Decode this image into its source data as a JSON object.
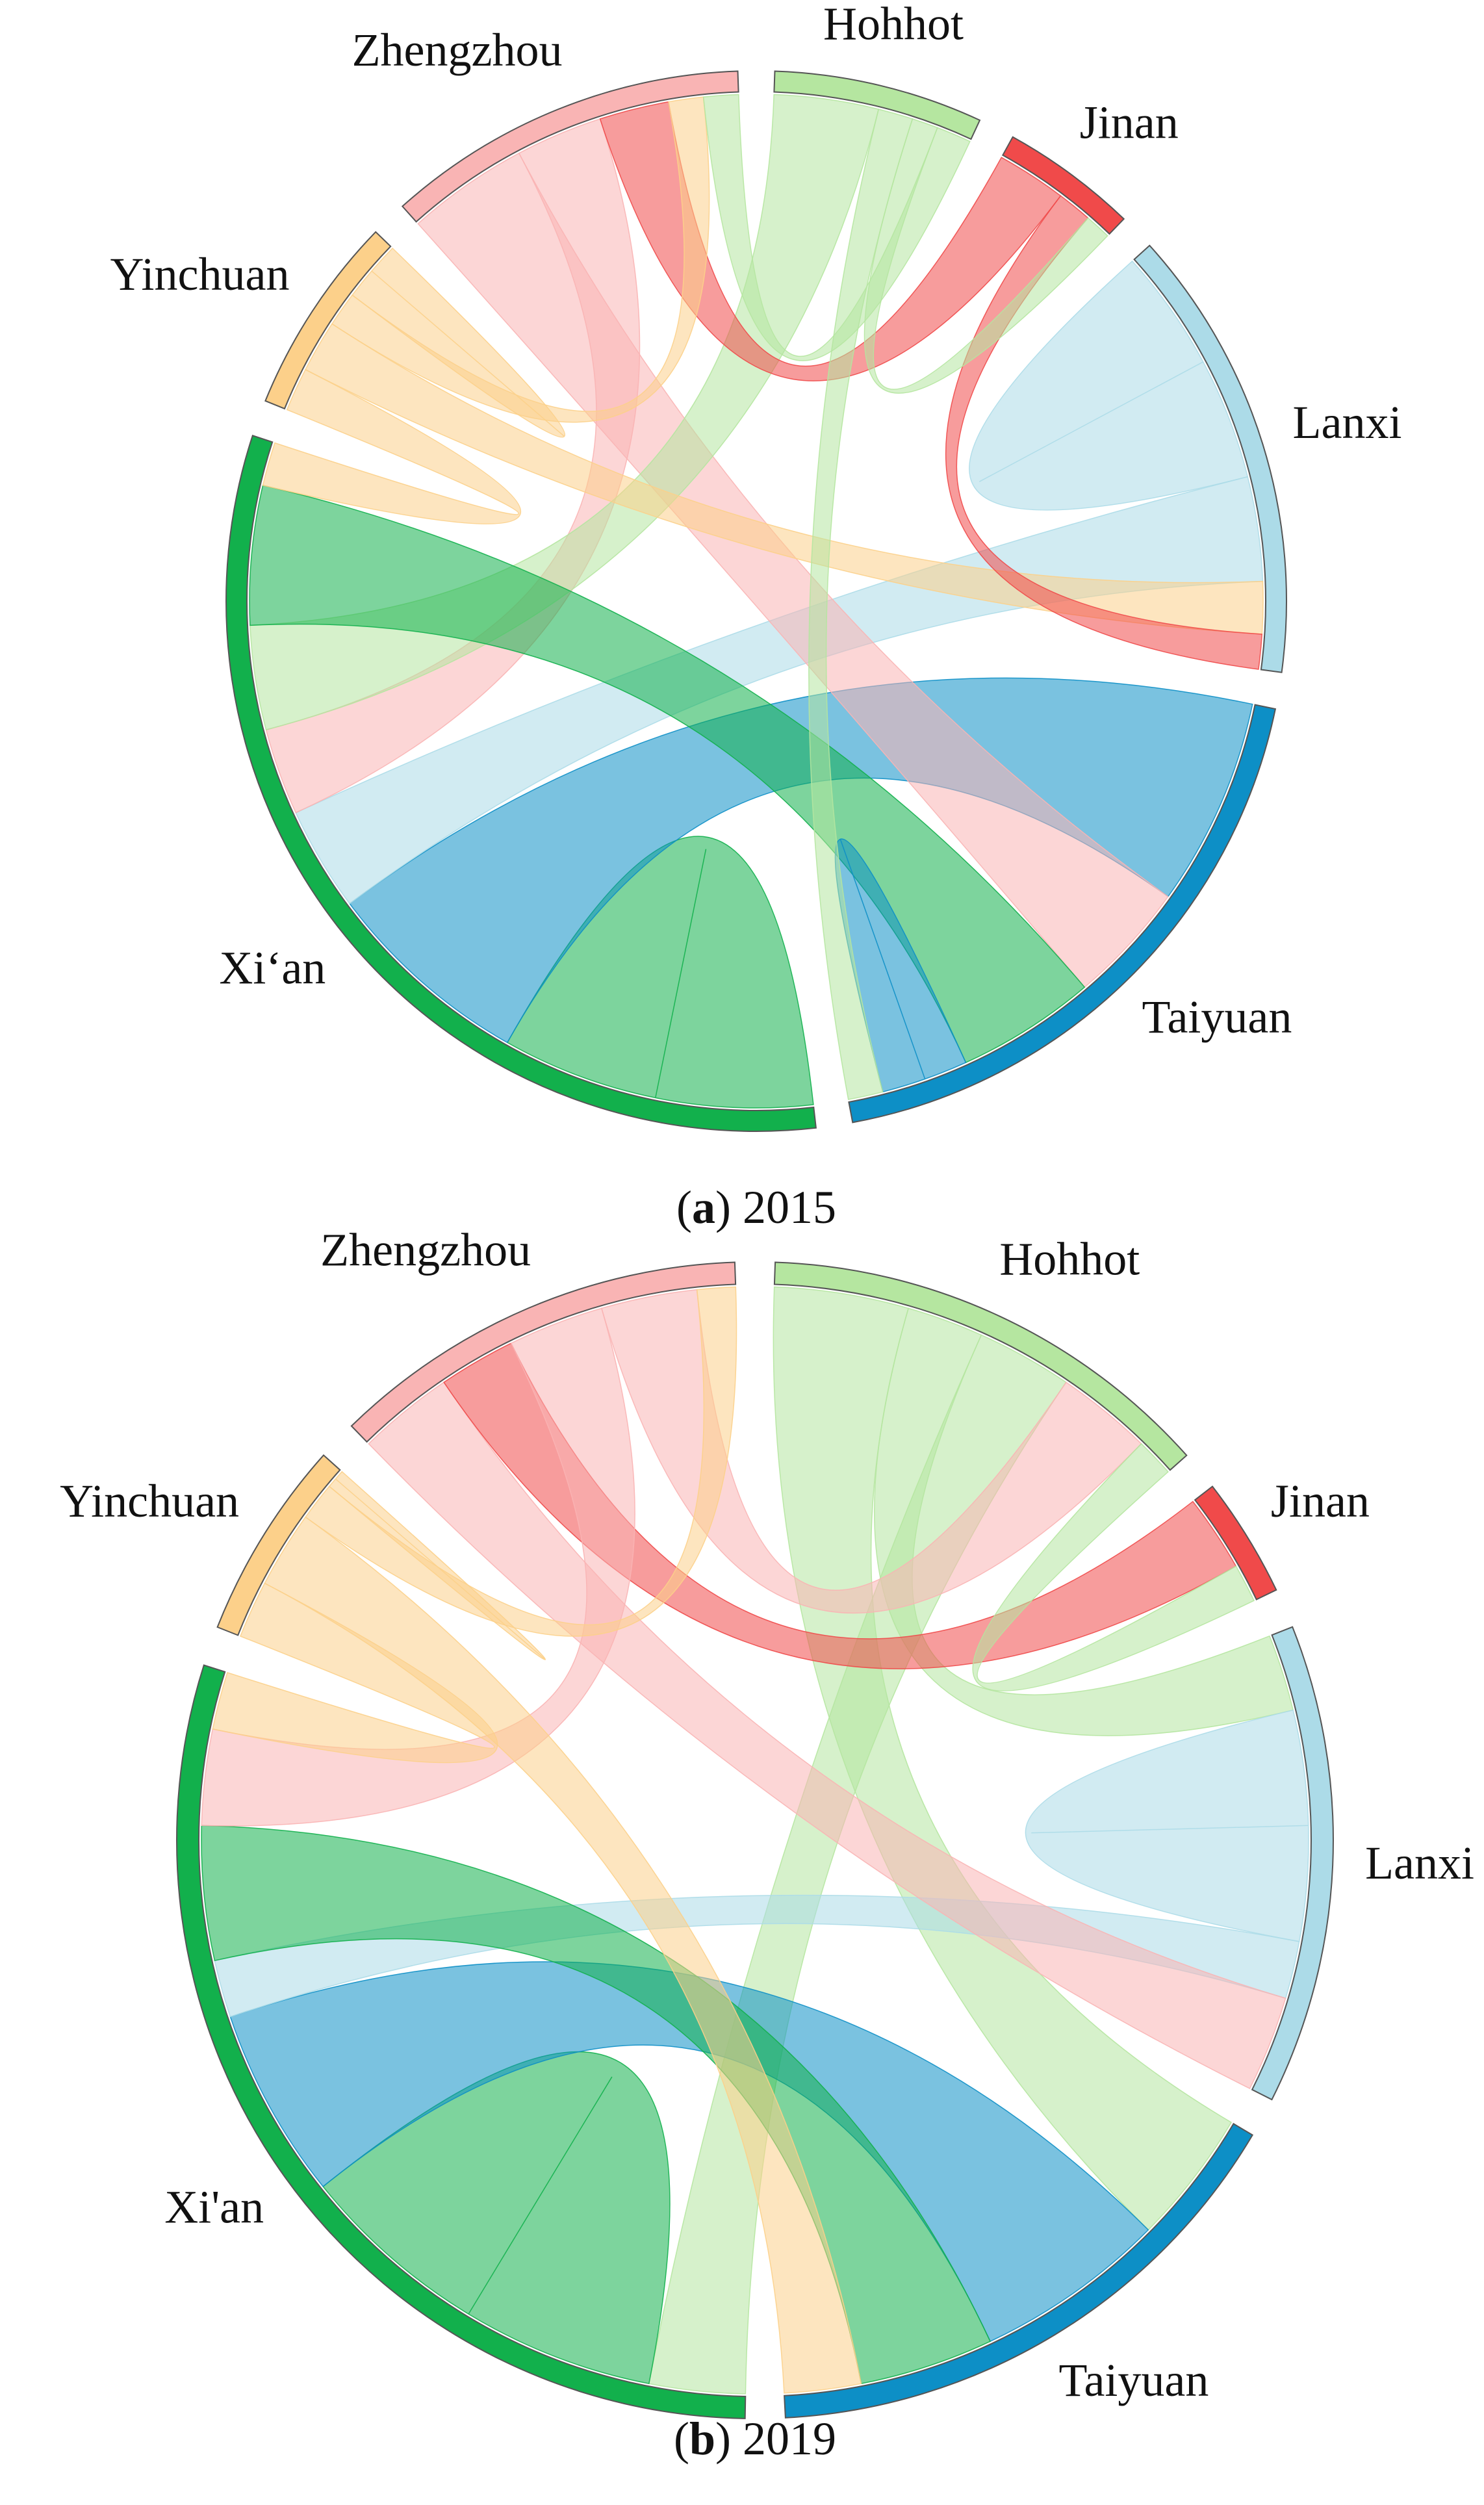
{
  "chart_data": [
    {
      "type": "chord",
      "caption_parts": [
        "(",
        "a",
        ") 2015"
      ],
      "nodes": [
        {
          "name": "Hohhot",
          "color": "#b5e6a0",
          "value": 23
        },
        {
          "name": "Jinan",
          "color": "#f04a4a",
          "value": 15
        },
        {
          "name": "Lanxi",
          "color": "#acdbe8",
          "value": 50
        },
        {
          "name": "Taiyuan",
          "color": "#0d8fc6",
          "value": 68
        },
        {
          "name": "Xi‘an",
          "color": "#12b04c",
          "value": 115
        },
        {
          "name": "Yinchuan",
          "color": "#fcd08a",
          "value": 22
        },
        {
          "name": "Zhengzhou",
          "color": "#f9b4b4",
          "value": 40
        }
      ],
      "links": [
        {
          "source": "Lanxi",
          "target": "Lanxi",
          "value": 14
        },
        {
          "source": "Xi‘an",
          "target": "Xi‘an",
          "value": 18
        },
        {
          "source": "Taiyuan",
          "target": "Xi‘an",
          "value": 24
        },
        {
          "source": "Lanxi",
          "target": "Xi‘an",
          "value": 12
        },
        {
          "source": "Zhengzhou",
          "target": "Taiyuan",
          "value": 14
        },
        {
          "source": "Zhengzhou",
          "target": "Xi‘an",
          "value": 10
        },
        {
          "source": "Hohhot",
          "target": "Xi‘an",
          "value": 12
        },
        {
          "source": "Xi‘an",
          "target": "Taiyuan",
          "value": 16
        },
        {
          "source": "Jinan",
          "target": "Zhengzhou",
          "value": 8
        },
        {
          "source": "Yinchuan",
          "target": "Xi‘an",
          "value": 5
        },
        {
          "source": "Yinchuan",
          "target": "Lanxi",
          "value": 6
        },
        {
          "source": "Taiyuan",
          "target": "Taiyuan",
          "value": 5
        },
        {
          "source": "Hohhot",
          "target": "Taiyuan",
          "value": 4
        },
        {
          "source": "Jinan",
          "target": "Lanxi",
          "value": 4
        },
        {
          "source": "Yinchuan",
          "target": "Zhengzhou",
          "value": 4
        },
        {
          "source": "Hohhot",
          "target": "Jinan",
          "value": 3
        },
        {
          "source": "Hohhot",
          "target": "Zhengzhou",
          "value": 4
        },
        {
          "source": "Yinchuan",
          "target": "Yinchuan",
          "value": 3.5
        }
      ]
    },
    {
      "type": "chord",
      "caption_parts": [
        "(",
        "b",
        ") 2019"
      ],
      "nodes": [
        {
          "name": "Hohhot",
          "color": "#b5e6a0",
          "value": 46
        },
        {
          "name": "Jinan",
          "color": "#f04a4a",
          "value": 12
        },
        {
          "name": "Lanxi",
          "color": "#acdbe8",
          "value": 48
        },
        {
          "name": "Taiyuan",
          "color": "#0d8fc6",
          "value": 56
        },
        {
          "name": "Xi'an",
          "color": "#12b04c",
          "value": 106
        },
        {
          "name": "Yinchuan",
          "color": "#fcd08a",
          "value": 20
        },
        {
          "name": "Zhengzhou",
          "color": "#f9b4b4",
          "value": 42
        }
      ],
      "links": [
        {
          "source": "Hohhot",
          "target": "Taiyuan",
          "value": 14
        },
        {
          "source": "Hohhot",
          "target": "Lanxi",
          "value": 8
        },
        {
          "source": "Hohhot",
          "target": "Xi'an",
          "value": 10
        },
        {
          "source": "Lanxi",
          "target": "Lanxi",
          "value": 12
        },
        {
          "source": "Xi'an",
          "target": "Xi'an",
          "value": 20
        },
        {
          "source": "Taiyuan",
          "target": "Xi'an",
          "value": 20
        },
        {
          "source": "Lanxi",
          "target": "Xi'an",
          "value": 6
        },
        {
          "source": "Zhengzhou",
          "target": "Lanxi",
          "value": 10
        },
        {
          "source": "Xi'an",
          "target": "Taiyuan",
          "value": 14
        },
        {
          "source": "Jinan",
          "target": "Zhengzhou",
          "value": 8
        },
        {
          "source": "Zhengzhou",
          "target": "Xi'an",
          "value": 10
        },
        {
          "source": "Yinchuan",
          "target": "Xi'an",
          "value": 6
        },
        {
          "source": "Yinchuan",
          "target": "Taiyuan",
          "value": 8
        },
        {
          "source": "Zhengzhou",
          "target": "Hohhot",
          "value": 10
        },
        {
          "source": "Hohhot",
          "target": "Jinan",
          "value": 4
        },
        {
          "source": "Yinchuan",
          "target": "Zhengzhou",
          "value": 4
        },
        {
          "source": "Yinchuan",
          "target": "Yinchuan",
          "value": 1
        }
      ]
    }
  ]
}
